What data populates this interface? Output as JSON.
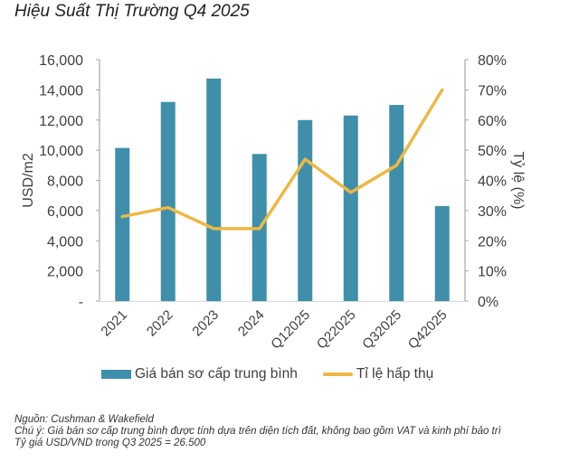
{
  "title": "Hiệu Suất Thị Trường Q4 2025",
  "chart_data": {
    "type": "bar+line",
    "title": "Hiệu Suất Thị Trường Q4 2025",
    "categories": [
      "2021",
      "2022",
      "2023",
      "2024",
      "Q12025",
      "Q22025",
      "Q32025",
      "Q42025"
    ],
    "series": [
      {
        "name": "Giá bán sơ cấp trung bình",
        "type": "bar",
        "axis": "left",
        "color": "#3F8FAA",
        "values": [
          10150,
          13200,
          14750,
          9750,
          12000,
          12300,
          13000,
          6300
        ]
      },
      {
        "name": "Tỉ lệ hấp thụ",
        "type": "line",
        "axis": "right",
        "color": "#EDB845",
        "values": [
          0.28,
          0.31,
          0.24,
          0.24,
          0.47,
          0.36,
          0.45,
          0.7
        ]
      }
    ],
    "y_left": {
      "label": "USD/m2",
      "range": [
        0,
        16000
      ],
      "ticks": [
        0,
        2000,
        4000,
        6000,
        8000,
        10000,
        12000,
        14000,
        16000
      ],
      "tick_labels": [
        "-",
        "2,000",
        "4,000",
        "6,000",
        "8,000",
        "10,000",
        "12,000",
        "14,000",
        "16,000"
      ]
    },
    "y_right": {
      "label": "Tỷ lệ (%)",
      "range": [
        0,
        0.8
      ],
      "ticks": [
        0,
        0.1,
        0.2,
        0.3,
        0.4,
        0.5,
        0.6,
        0.7,
        0.8
      ],
      "tick_labels": [
        "0%",
        "10%",
        "20%",
        "30%",
        "40%",
        "50%",
        "60%",
        "70%",
        "80%"
      ]
    },
    "xlabel": "",
    "grid": false,
    "legend_position": "bottom"
  },
  "legend": {
    "bar_label": "Giá bán sơ cấp trung bình",
    "line_label": "Tỉ lệ hấp thụ"
  },
  "notes": {
    "source": "Nguồn: Cushman & Wakefield",
    "note": "Chú ý: Giá bán sơ cấp trung bình được tính dựa trên diện tích đất, không bao gồm VAT và  kinh phí bảo trì",
    "rate": "Tỷ giá USD/VND trong Q3 2025 = 26.500"
  }
}
